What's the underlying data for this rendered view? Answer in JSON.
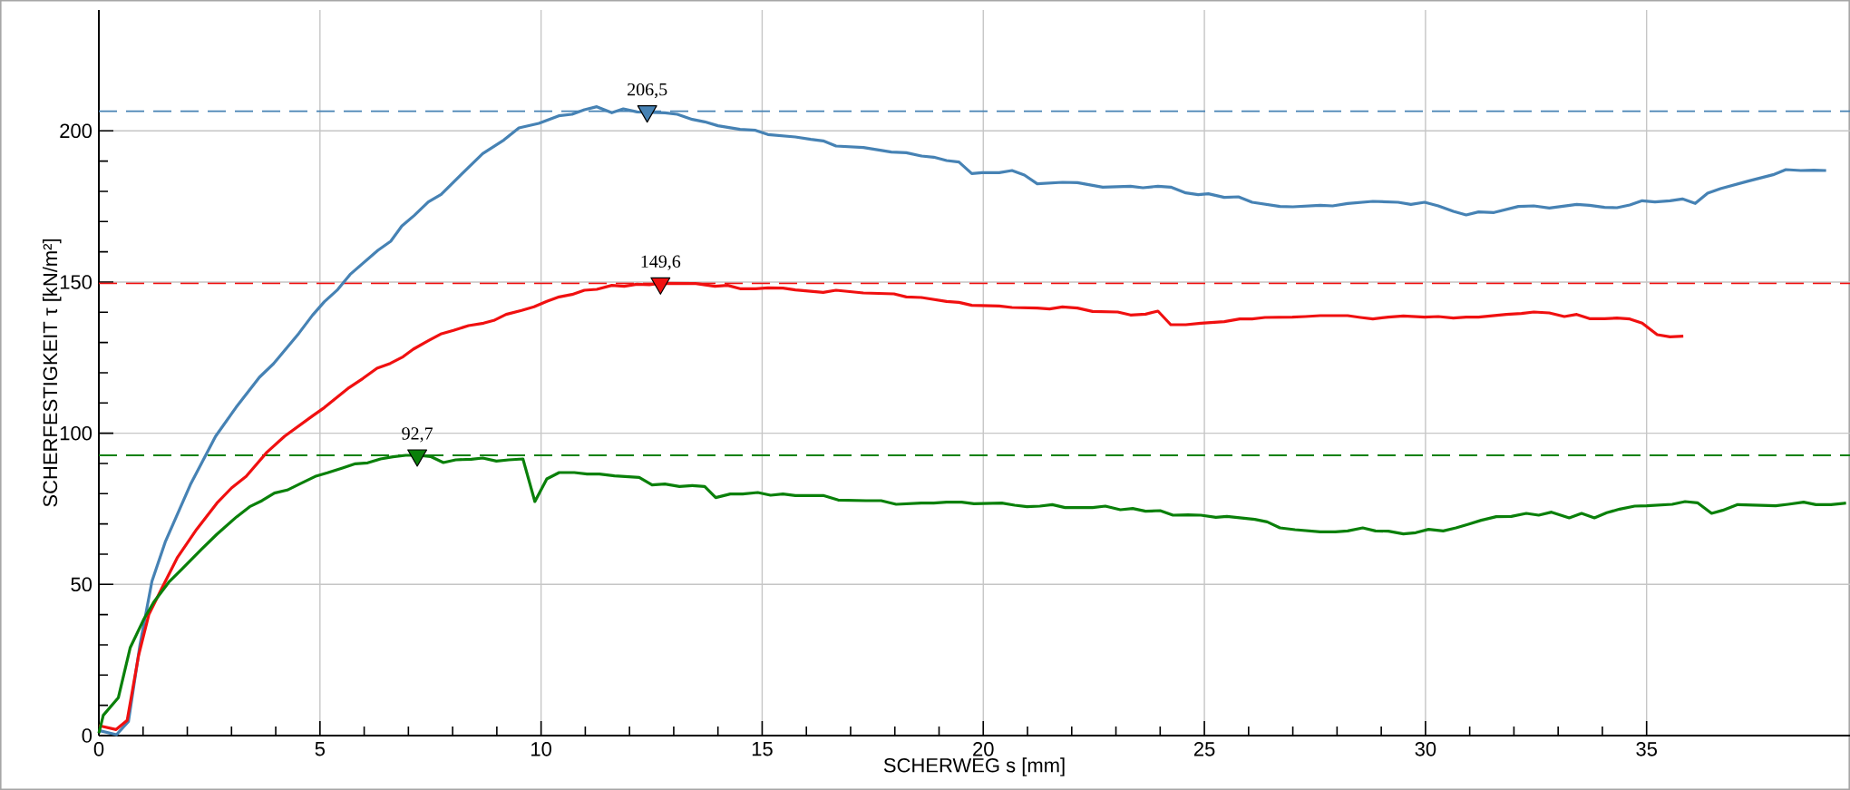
{
  "chart_data": {
    "type": "line",
    "xlabel": "SCHERWEG s [mm]",
    "ylabel": "SCHERFESTIGKEIT τ [kN/m²]",
    "xlim": [
      0,
      39.6
    ],
    "ylim": [
      0,
      240
    ],
    "xticks": [
      0,
      5,
      10,
      15,
      20,
      25,
      30,
      35
    ],
    "yticks": [
      0,
      50,
      100,
      150,
      200
    ],
    "grid": true,
    "series": [
      {
        "color": "#4682b4",
        "x": [
          0,
          0.4,
          0.67,
          0.93,
          1.2,
          1.5,
          2.07,
          2.64,
          3.1,
          3.63,
          3.95,
          4.52,
          4.83,
          5.1,
          5.4,
          5.68,
          6.31,
          6.6,
          6.85,
          7.13,
          7.45,
          7.74,
          8.19,
          8.68,
          9.16,
          9.5,
          9.95,
          10.4,
          10.7,
          10.98,
          11.26,
          11.6,
          11.86,
          12.17,
          12.8,
          13.08,
          13.42,
          13.7,
          14.0,
          14.5,
          14.85,
          15.13,
          15.75,
          16.1,
          16.38,
          16.67,
          17.29,
          17.92,
          18.26,
          18.6,
          18.88,
          19.17,
          19.45,
          19.74,
          19.97,
          20.36,
          20.65,
          20.93,
          21.22,
          21.79,
          22.13,
          22.7,
          23.33,
          23.61,
          23.95,
          24.24,
          24.58,
          24.86,
          25.09,
          25.45,
          25.77,
          26.08,
          26.71,
          27.0,
          27.62,
          27.9,
          28.24,
          28.81,
          29.38,
          29.67,
          29.98,
          30.29,
          30.63,
          30.92,
          31.2,
          31.55,
          32.1,
          32.45,
          32.8,
          33.42,
          33.71,
          34.05,
          34.33,
          34.62,
          34.9,
          35.19,
          35.53,
          35.81,
          36.1,
          36.38,
          36.67,
          37.3,
          37.86,
          38.15,
          38.49,
          38.78,
          39.06
        ],
        "values": [
          1.7,
          0.3,
          4.7,
          30,
          51,
          64,
          83,
          99,
          108.5,
          118.5,
          123,
          133,
          139,
          143.5,
          147.5,
          152.5,
          160.5,
          163.5,
          168.5,
          172,
          176.5,
          179,
          185.5,
          192.5,
          197,
          201,
          202.5,
          205,
          205.5,
          207,
          208,
          206,
          207.3,
          206.3,
          206,
          205.5,
          203.8,
          203,
          201.7,
          200.5,
          200.2,
          198.8,
          198,
          197.2,
          196.7,
          195,
          194.5,
          193,
          192.8,
          191.7,
          191.3,
          190.2,
          189.7,
          185.9,
          186.2,
          186.2,
          186.9,
          185.4,
          182.5,
          183,
          182.9,
          181.4,
          181.7,
          181.2,
          181.7,
          181.4,
          179.5,
          178.9,
          179.2,
          178,
          178.2,
          176.4,
          175,
          174.9,
          175.4,
          175.2,
          176,
          176.7,
          176.4,
          175.7,
          176.4,
          175.2,
          173.4,
          172.2,
          173.2,
          173,
          175,
          175.2,
          174.5,
          175.7,
          175.4,
          174.7,
          174.6,
          175.5,
          176.9,
          176.5,
          176.9,
          177.5,
          176,
          179.4,
          180.9,
          183.4,
          185.5,
          187.2,
          186.9,
          187,
          186.9
        ]
      },
      {
        "color": "#f01010",
        "x": [
          0,
          0.39,
          0.64,
          0.9,
          1.13,
          1.41,
          1.78,
          2.21,
          2.67,
          3.0,
          3.33,
          3.8,
          4.2,
          4.83,
          5.1,
          5.66,
          5.97,
          6.29,
          6.59,
          6.88,
          7.11,
          7.45,
          7.73,
          8.02,
          8.36,
          8.7,
          8.93,
          9.21,
          9.56,
          9.84,
          10.13,
          10.41,
          10.7,
          10.98,
          11.26,
          11.6,
          11.88,
          12.17,
          12.45,
          12.68,
          13.5,
          13.93,
          14.22,
          14.5,
          14.85,
          15.13,
          15.47,
          15.75,
          16.38,
          16.67,
          17.29,
          17.98,
          18.26,
          18.6,
          19.17,
          19.45,
          19.74,
          20.36,
          20.65,
          21.22,
          21.5,
          21.79,
          22.13,
          22.47,
          23.04,
          23.33,
          23.67,
          23.95,
          24.24,
          24.58,
          24.92,
          25.45,
          25.8,
          26.08,
          26.37,
          26.99,
          27.28,
          27.62,
          28.24,
          28.53,
          28.81,
          29.16,
          29.5,
          29.98,
          30.29,
          30.63,
          30.92,
          31.2,
          31.83,
          32.17,
          32.45,
          32.8,
          33.14,
          33.42,
          33.71,
          34.05,
          34.33,
          34.62,
          34.9,
          35.24,
          35.53,
          35.83
        ],
        "values": [
          3.3,
          2,
          5,
          26.6,
          40,
          48.3,
          59,
          68.2,
          76.9,
          81.9,
          85.7,
          93.7,
          99,
          105.7,
          108.5,
          115.1,
          118.1,
          121.5,
          123.1,
          125.3,
          127.8,
          130.6,
          132.8,
          134,
          135.6,
          136.4,
          137.3,
          139.3,
          140.6,
          141.8,
          143.6,
          145.1,
          145.9,
          147.3,
          147.6,
          148.9,
          148.6,
          149.3,
          149.1,
          149.6,
          149.5,
          148.6,
          148.9,
          147.8,
          147.8,
          148.1,
          148,
          147.4,
          146.6,
          147.3,
          146.4,
          146.1,
          145.1,
          144.9,
          143.6,
          143.3,
          142.3,
          142.1,
          141.6,
          141.4,
          141.1,
          141.8,
          141.4,
          140.3,
          140.1,
          139.1,
          139.4,
          140.4,
          135.9,
          135.9,
          136.4,
          136.9,
          137.8,
          137.8,
          138.3,
          138.4,
          138.6,
          138.9,
          138.9,
          138.3,
          137.8,
          138.4,
          138.8,
          138.4,
          138.6,
          138.1,
          138.4,
          138.4,
          139.3,
          139.6,
          140.1,
          139.8,
          138.6,
          139.3,
          137.9,
          137.9,
          138.1,
          137.8,
          136.4,
          132.6,
          131.9,
          132.1
        ]
      },
      {
        "color": "#0a800a",
        "x": [
          0,
          0.1,
          0.44,
          0.71,
          1.01,
          1.24,
          1.58,
          1.87,
          2.32,
          2.67,
          3.12,
          3.41,
          3.69,
          3.97,
          4.26,
          4.54,
          4.89,
          5.17,
          5.51,
          5.8,
          6.08,
          6.37,
          6.65,
          6.94,
          7.22,
          7.5,
          7.79,
          8.07,
          8.42,
          8.68,
          8.99,
          9.27,
          9.59,
          9.86,
          10.13,
          10.41,
          10.75,
          11.04,
          11.32,
          11.66,
          12.22,
          12.51,
          12.8,
          13.13,
          13.42,
          13.7,
          13.95,
          14.28,
          14.56,
          14.9,
          15.19,
          15.47,
          15.75,
          16.38,
          16.72,
          17.35,
          17.69,
          18.03,
          18.6,
          18.88,
          19.17,
          19.51,
          19.79,
          20.42,
          20.71,
          20.99,
          21.28,
          21.56,
          21.85,
          22.47,
          22.76,
          23.1,
          23.38,
          23.67,
          24.0,
          24.29,
          24.63,
          24.92,
          25.26,
          25.51,
          26.14,
          26.42,
          26.71,
          27.05,
          27.62,
          27.96,
          28.24,
          28.58,
          28.87,
          29.16,
          29.5,
          29.78,
          30.07,
          30.4,
          30.69,
          30.97,
          31.26,
          31.6,
          31.94,
          32.28,
          32.56,
          32.85,
          33.25,
          33.53,
          33.82,
          34.1,
          34.39,
          34.73,
          35.01,
          35.58,
          35.87,
          36.15,
          36.47,
          36.72,
          37.06,
          37.92,
          38.2,
          38.55,
          38.83,
          39.17,
          39.51
        ],
        "values": [
          0.8,
          6.7,
          12.5,
          29.1,
          38.3,
          44.1,
          50.7,
          54.9,
          61.6,
          66.6,
          72.4,
          75.7,
          77.7,
          80.2,
          81.2,
          83.2,
          85.7,
          86.9,
          88.5,
          89.9,
          90.2,
          91.5,
          92.2,
          92.7,
          92.7,
          92.3,
          90.3,
          91.2,
          91.4,
          91.8,
          90.8,
          91.2,
          91.5,
          77.4,
          84.9,
          87,
          87,
          86.5,
          86.5,
          85.9,
          85.4,
          82.9,
          83.2,
          82.4,
          82.7,
          82.4,
          78.7,
          79.9,
          79.9,
          80.4,
          79.5,
          79.9,
          79.4,
          79.4,
          77.9,
          77.7,
          77.7,
          76.5,
          76.9,
          76.9,
          77.2,
          77.2,
          76.7,
          76.9,
          76.2,
          75.7,
          75.9,
          76.4,
          75.4,
          75.4,
          75.9,
          74.7,
          75.1,
          74.2,
          74.4,
          72.9,
          73,
          72.9,
          72.2,
          72.5,
          71.5,
          70.7,
          68.7,
          68.1,
          67.4,
          67.4,
          67.7,
          68.7,
          67.7,
          67.6,
          66.7,
          67.1,
          68.2,
          67.7,
          68.7,
          69.9,
          71.2,
          72.4,
          72.5,
          73.5,
          72.9,
          73.9,
          72,
          73.5,
          72,
          73.7,
          74.9,
          75.9,
          76,
          76.5,
          77.4,
          77,
          73.5,
          74.5,
          76.4,
          76,
          76.5,
          77.2,
          76.4,
          76.4,
          76.9
        ]
      },
      {
        "type": "scatter",
        "color": "#4682b4",
        "marker": "triangle",
        "x": [
          12.4
        ],
        "values": [
          206.5
        ]
      },
      {
        "type": "scatter",
        "color": "#f01010",
        "marker": "triangle",
        "x": [
          12.7
        ],
        "values": [
          149.6
        ]
      },
      {
        "type": "scatter",
        "color": "#0a800a",
        "marker": "triangle",
        "x": [
          7.2
        ],
        "values": [
          92.7
        ]
      }
    ],
    "ref_lines": [
      {
        "axis": "y",
        "value": 206.5,
        "color": "#4682b4",
        "line_style": "dashed"
      },
      {
        "axis": "y",
        "value": 149.6,
        "color": "#f01010",
        "line_style": "dashed"
      },
      {
        "axis": "y",
        "value": 92.7,
        "color": "#0a800a",
        "line_style": "dashed"
      }
    ],
    "annotations": [
      {
        "text": "206,5",
        "x": 12.4,
        "y": 206.5
      },
      {
        "text": "149,6",
        "x": 12.7,
        "y": 149.6
      },
      {
        "text": "92,7",
        "x": 7.2,
        "y": 92.7
      }
    ]
  }
}
